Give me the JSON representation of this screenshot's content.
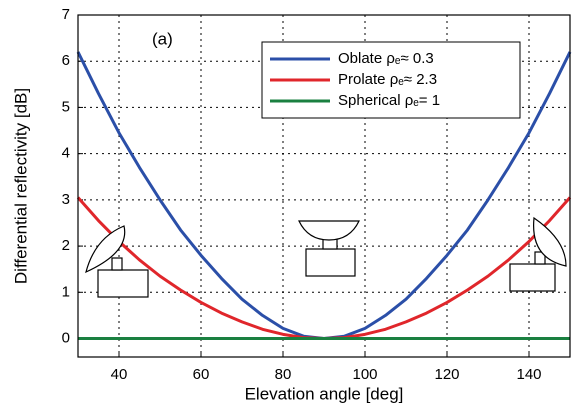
{
  "chart_data": {
    "type": "line",
    "annotation": "(a)",
    "x_label": "Elevation angle [deg]",
    "y_label": "Differential reflectivity [dB]",
    "xlim": [
      30,
      150
    ],
    "xticks": [
      40,
      60,
      80,
      100,
      120,
      140
    ],
    "ylim": [
      -0.4,
      7
    ],
    "yticks": [
      0,
      1,
      2,
      3,
      4,
      5,
      6,
      7
    ],
    "grid": true,
    "legend": "upper right",
    "x": [
      30,
      35,
      40,
      45,
      50,
      55,
      60,
      65,
      70,
      75,
      80,
      85,
      90,
      95,
      100,
      105,
      110,
      115,
      120,
      125,
      130,
      135,
      140,
      145,
      150
    ],
    "series": [
      {
        "name": "Oblate  ρₑ≈ 0.3",
        "color": "#2b4fa8",
        "values": [
          6.2,
          5.3,
          4.45,
          3.7,
          3.0,
          2.35,
          1.8,
          1.3,
          0.85,
          0.5,
          0.22,
          0.05,
          0,
          0.05,
          0.22,
          0.5,
          0.85,
          1.3,
          1.8,
          2.35,
          3.0,
          3.7,
          4.45,
          5.3,
          6.2
        ]
      },
      {
        "name": "Prolate  ρₑ≈ 2.3",
        "color": "#e0262b",
        "values": [
          3.05,
          2.55,
          2.1,
          1.7,
          1.35,
          1.05,
          0.78,
          0.55,
          0.36,
          0.2,
          0.09,
          0.02,
          0,
          0.02,
          0.09,
          0.2,
          0.36,
          0.55,
          0.78,
          1.05,
          1.35,
          1.7,
          2.1,
          2.55,
          3.05
        ]
      },
      {
        "name": "Spherical  ρₑ= 1",
        "color": "#1a8040",
        "values": [
          0,
          0,
          0,
          0,
          0,
          0,
          0,
          0,
          0,
          0,
          0,
          0,
          0,
          0,
          0,
          0,
          0,
          0,
          0,
          0,
          0,
          0,
          0,
          0,
          0
        ]
      }
    ]
  }
}
